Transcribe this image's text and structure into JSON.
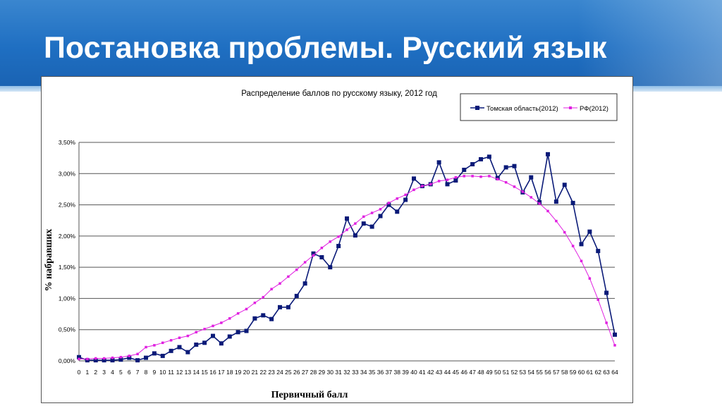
{
  "slide": {
    "title": "Постановка проблемы. Русский язык"
  },
  "colors": {
    "header": "#1f6fc2",
    "tomsk_series": "#0a1a78",
    "rf_series": "#e020e0",
    "grid": "#555555"
  },
  "chart_data": {
    "type": "line",
    "title": "Распределение баллов по русскому языку, 2012 год",
    "xlabel": "Первичный балл",
    "ylabel": "% набравших",
    "ylim": [
      0,
      0.035
    ],
    "yticks": [
      "0,00%",
      "0,50%",
      "1,00%",
      "1,50%",
      "2,00%",
      "2,50%",
      "3,00%",
      "3,50%"
    ],
    "grid": true,
    "legend_position": "top-right",
    "categories": [
      "0",
      "1",
      "2",
      "3",
      "4",
      "5",
      "6",
      "7",
      "8",
      "9",
      "10",
      "11",
      "12",
      "13",
      "14",
      "15",
      "16",
      "17",
      "18",
      "19",
      "20",
      "21",
      "22",
      "23",
      "24",
      "25",
      "26",
      "27",
      "28",
      "29",
      "30",
      "31",
      "32",
      "33",
      "34",
      "35",
      "36",
      "37",
      "38",
      "39",
      "40",
      "41",
      "42",
      "43",
      "44",
      "45",
      "46",
      "47",
      "48",
      "49",
      "50",
      "51",
      "52",
      "53",
      "54",
      "55",
      "56",
      "57",
      "58",
      "59",
      "60",
      "61",
      "62",
      "63",
      "64"
    ],
    "series": [
      {
        "name": "Томская область(2012)",
        "color": "#0a1a78",
        "marker": "square",
        "values": [
          0.0006,
          0.0001,
          0.0001,
          0.0001,
          0.0001,
          0.0002,
          0.0005,
          0.0001,
          0.0005,
          0.0012,
          0.0008,
          0.0016,
          0.0022,
          0.0014,
          0.0026,
          0.0029,
          0.004,
          0.0028,
          0.0039,
          0.0046,
          0.0048,
          0.0068,
          0.0073,
          0.0067,
          0.0086,
          0.0086,
          0.0104,
          0.0124,
          0.0172,
          0.0166,
          0.015,
          0.0184,
          0.0228,
          0.0201,
          0.022,
          0.0215,
          0.0232,
          0.025,
          0.0239,
          0.0258,
          0.0292,
          0.028,
          0.0283,
          0.0318,
          0.0283,
          0.0289,
          0.0306,
          0.0315,
          0.0323,
          0.0327,
          0.0293,
          0.031,
          0.0312,
          0.027,
          0.0294,
          0.0254,
          0.0331,
          0.0255,
          0.0282,
          0.0253,
          0.0187,
          0.0207,
          0.0176,
          0.0109,
          0.0042
        ]
      },
      {
        "name": "РФ(2012)",
        "color": "#e020e0",
        "marker": "small-square",
        "values": [
          0.0003,
          0.0003,
          0.0004,
          0.0004,
          0.0005,
          0.0006,
          0.0008,
          0.0011,
          0.0022,
          0.0025,
          0.0029,
          0.0033,
          0.0037,
          0.004,
          0.0046,
          0.0051,
          0.0056,
          0.0061,
          0.0068,
          0.0076,
          0.0083,
          0.0093,
          0.0102,
          0.0115,
          0.0124,
          0.0135,
          0.0146,
          0.0158,
          0.0169,
          0.0181,
          0.0191,
          0.0199,
          0.021,
          0.022,
          0.0231,
          0.0237,
          0.0243,
          0.0253,
          0.026,
          0.0266,
          0.0274,
          0.028,
          0.0283,
          0.0288,
          0.029,
          0.0294,
          0.0296,
          0.0296,
          0.0295,
          0.0296,
          0.0291,
          0.0286,
          0.0279,
          0.0271,
          0.0262,
          0.0252,
          0.024,
          0.0224,
          0.0206,
          0.0184,
          0.016,
          0.0132,
          0.0098,
          0.0061,
          0.0025
        ]
      }
    ]
  }
}
